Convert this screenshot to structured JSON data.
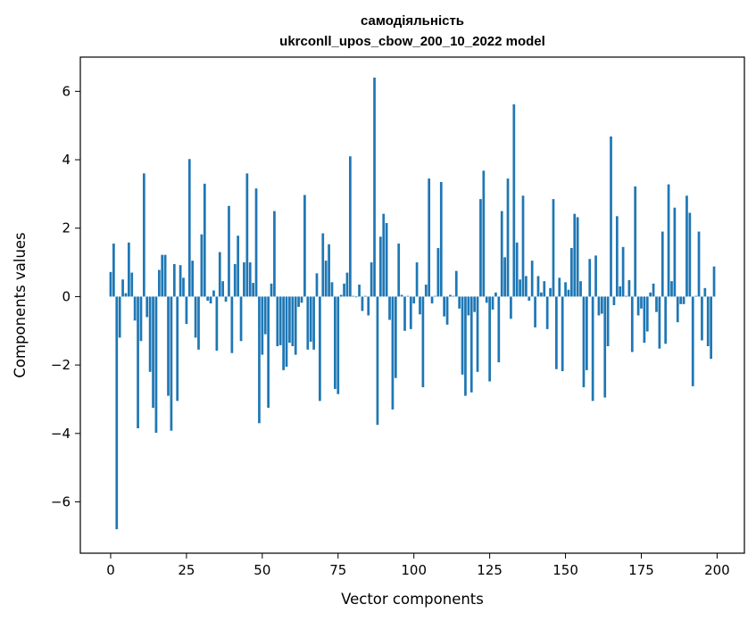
{
  "chart_data": {
    "type": "bar",
    "title": "самодіяльність",
    "subtitle": "ukrconll_upos_cbow_200_10_2022 model",
    "xlabel": "Vector components",
    "ylabel": "Components values",
    "xlim": [
      -10,
      209
    ],
    "ylim": [
      -7.5,
      7.0
    ],
    "xticks": [
      0,
      25,
      50,
      75,
      100,
      125,
      150,
      175,
      200
    ],
    "yticks": [
      -6,
      -4,
      -2,
      0,
      2,
      4,
      6
    ],
    "ytick_labels": [
      "−6",
      "−4",
      "−2",
      "0",
      "2",
      "4",
      "6"
    ],
    "grid": false,
    "bar_color": "#1f77b4",
    "x": [
      0,
      1,
      2,
      3,
      4,
      5,
      6,
      7,
      8,
      9,
      10,
      11,
      12,
      13,
      14,
      15,
      16,
      17,
      18,
      19,
      20,
      21,
      22,
      23,
      24,
      25,
      26,
      27,
      28,
      29,
      30,
      31,
      32,
      33,
      34,
      35,
      36,
      37,
      38,
      39,
      40,
      41,
      42,
      43,
      44,
      45,
      46,
      47,
      48,
      49,
      50,
      51,
      52,
      53,
      54,
      55,
      56,
      57,
      58,
      59,
      60,
      61,
      62,
      63,
      64,
      65,
      66,
      67,
      68,
      69,
      70,
      71,
      72,
      73,
      74,
      75,
      76,
      77,
      78,
      79,
      80,
      81,
      82,
      83,
      84,
      85,
      86,
      87,
      88,
      89,
      90,
      91,
      92,
      93,
      94,
      95,
      96,
      97,
      98,
      99,
      100,
      101,
      102,
      103,
      104,
      105,
      106,
      107,
      108,
      109,
      110,
      111,
      112,
      113,
      114,
      115,
      116,
      117,
      118,
      119,
      120,
      121,
      122,
      123,
      124,
      125,
      126,
      127,
      128,
      129,
      130,
      131,
      132,
      133,
      134,
      135,
      136,
      137,
      138,
      139,
      140,
      141,
      142,
      143,
      144,
      145,
      146,
      147,
      148,
      149,
      150,
      151,
      152,
      153,
      154,
      155,
      156,
      157,
      158,
      159,
      160,
      161,
      162,
      163,
      164,
      165,
      166,
      167,
      168,
      169,
      170,
      171,
      172,
      173,
      174,
      175,
      176,
      177,
      178,
      179,
      180,
      181,
      182,
      183,
      184,
      185,
      186,
      187,
      188,
      189,
      190,
      191,
      192,
      193,
      194,
      195,
      196,
      197,
      198,
      199
    ],
    "values": [
      0.72,
      1.55,
      -6.8,
      -1.2,
      0.5,
      0.1,
      1.58,
      0.7,
      -0.7,
      -3.85,
      -1.3,
      3.6,
      -0.6,
      -2.2,
      -3.25,
      -3.98,
      0.78,
      1.22,
      1.22,
      -2.9,
      -3.92,
      0.95,
      -3.05,
      0.92,
      0.55,
      -0.8,
      4.02,
      1.05,
      -1.2,
      -1.55,
      1.82,
      3.3,
      -0.12,
      -0.2,
      0.18,
      -1.58,
      1.3,
      0.45,
      -0.15,
      2.65,
      -1.65,
      0.95,
      1.78,
      -1.3,
      1.0,
      3.6,
      1.0,
      0.4,
      3.16,
      -3.7,
      -1.7,
      -1.1,
      -3.25,
      0.38,
      2.5,
      -1.45,
      -1.42,
      -2.15,
      -2.05,
      -1.35,
      -1.45,
      -1.7,
      -0.3,
      -0.18,
      2.97,
      -1.55,
      -1.32,
      -1.55,
      0.68,
      -3.05,
      1.85,
      1.05,
      1.53,
      0.42,
      -2.7,
      -2.85,
      0.05,
      0.38,
      0.7,
      4.1,
      0.02,
      -0.02,
      0.35,
      -0.42,
      0.02,
      -0.55,
      1.0,
      6.4,
      -3.75,
      1.75,
      2.42,
      2.15,
      -0.68,
      -3.3,
      -2.38,
      1.55,
      0.05,
      -1.0,
      0.02,
      -0.95,
      -0.2,
      1.0,
      -0.52,
      -2.65,
      0.35,
      3.45,
      -0.2,
      0.02,
      1.42,
      3.35,
      -0.58,
      -0.82,
      0.05,
      0.02,
      0.75,
      -0.35,
      -2.28,
      -2.9,
      -0.55,
      -2.8,
      -0.45,
      -2.2,
      2.85,
      3.68,
      -0.18,
      -2.48,
      -0.38,
      0.12,
      -1.92,
      2.5,
      1.15,
      3.45,
      -0.65,
      5.62,
      1.58,
      0.5,
      2.95,
      0.6,
      -0.12,
      1.05,
      -0.9,
      0.6,
      0.12,
      0.45,
      -0.95,
      0.25,
      2.85,
      -2.12,
      0.55,
      -2.18,
      0.42,
      0.2,
      1.42,
      2.42,
      2.32,
      0.45,
      -2.65,
      -2.15,
      1.1,
      -3.05,
      1.2,
      -0.55,
      -0.5,
      -2.95,
      -1.45,
      4.68,
      -0.25,
      2.35,
      0.3,
      1.45,
      0.02,
      0.48,
      -1.62,
      3.22,
      -0.55,
      -0.35,
      -1.35,
      -1.02,
      0.12,
      0.38,
      -0.45,
      -1.52,
      1.9,
      -1.38,
      3.28,
      0.45,
      2.6,
      -0.75,
      -0.22,
      -0.22,
      2.95,
      2.45,
      -2.62,
      0.02,
      1.9,
      -1.28,
      0.25,
      -1.45,
      -1.82,
      0.88
    ]
  }
}
